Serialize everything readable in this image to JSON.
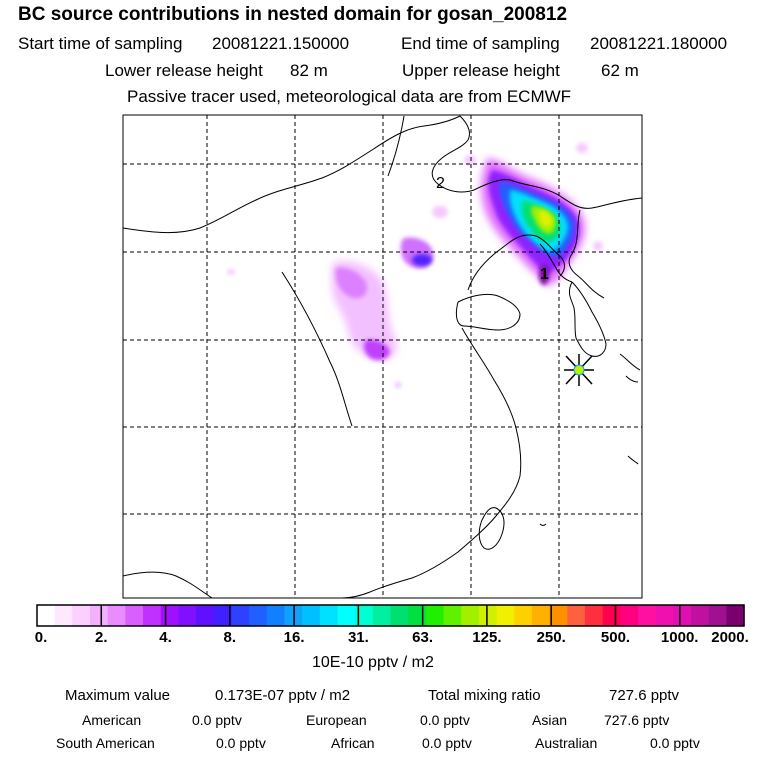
{
  "title": "BC  source contributions in nested domain for gosan_200812",
  "header": {
    "start_label": "Start time of sampling",
    "start_value": "20081221.150000",
    "end_label": "End time of sampling",
    "end_value": "20081221.180000",
    "lower_label": "Lower release height",
    "lower_value": "82 m",
    "upper_label": "Upper release height",
    "upper_value": "62 m",
    "note": "Passive tracer used, meteorological data are from ECMWF"
  },
  "map": {
    "point_labels": [
      "1",
      "2"
    ],
    "receptor": "gosan-receptor-star"
  },
  "colorbar": {
    "tick_labels": [
      "0.",
      "2.",
      "4.",
      "8.",
      "16.",
      "31.",
      "63.",
      "125.",
      "250.",
      "500.",
      "1000.",
      "2000."
    ],
    "unit_label": "10E-10 pptv / m2",
    "colors": [
      "#ffffff",
      "#fde8ff",
      "#f9d0ff",
      "#f2b0ff",
      "#e88cff",
      "#d860ff",
      "#c030ff",
      "#a010ff",
      "#8010ff",
      "#6010ff",
      "#4020ff",
      "#3040ff",
      "#2060ff",
      "#1080ff",
      "#10a0ff",
      "#00c0ff",
      "#00e0ff",
      "#00ffff",
      "#00ffd0",
      "#00f0a0",
      "#00e070",
      "#00e040",
      "#20f000",
      "#60f000",
      "#a0f000",
      "#d0f000",
      "#f0f000",
      "#ffd000",
      "#ffb000",
      "#ff9000",
      "#ff6040",
      "#ff3040",
      "#ff0050",
      "#ff0080",
      "#ff10a0",
      "#f010b0",
      "#e010b0",
      "#c010a0",
      "#a01090",
      "#7a0070"
    ]
  },
  "stats": {
    "max_label": "Maximum value",
    "max_value": "0.173E-07 pptv / m2",
    "total_label": "Total mixing ratio",
    "total_value": "727.6 pptv",
    "regions": [
      {
        "name": "American",
        "value": "0.0 pptv"
      },
      {
        "name": "European",
        "value": "0.0 pptv"
      },
      {
        "name": "Asian",
        "value": "727.6 pptv"
      },
      {
        "name": "South American",
        "value": "0.0 pptv"
      },
      {
        "name": "African",
        "value": "0.0 pptv"
      },
      {
        "name": "Australian",
        "value": "0.0 pptv"
      }
    ]
  }
}
